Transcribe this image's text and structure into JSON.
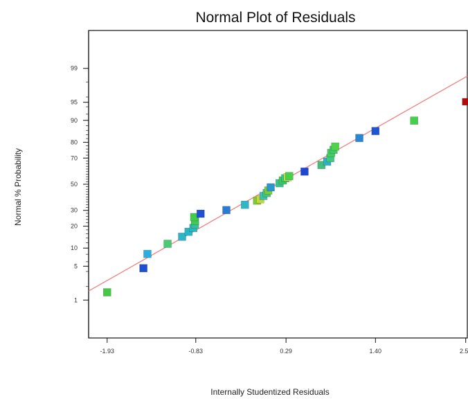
{
  "chart_data": {
    "type": "scatter",
    "title": "Normal Plot of Residuals",
    "xlabel": "Internally Studentized Residuals",
    "ylabel": "Normal % Probability",
    "xlim": [
      -2.16,
      2.54
    ],
    "ylim_percent": [
      0.1,
      99.9
    ],
    "y_scale": "normal-probability",
    "grid": false,
    "x_ticks": [
      {
        "value": -1.93,
        "label": "-1.93"
      },
      {
        "value": -0.83,
        "label": "-0.83"
      },
      {
        "value": 0.29,
        "label": "0.29"
      },
      {
        "value": 1.4,
        "label": "1.40"
      },
      {
        "value": 2.52,
        "label": "2.52"
      }
    ],
    "y_ticks": [
      {
        "value": 1,
        "label": "1"
      },
      {
        "value": 5,
        "label": "5"
      },
      {
        "value": 10,
        "label": "10"
      },
      {
        "value": 20,
        "label": "20"
      },
      {
        "value": 30,
        "label": "30"
      },
      {
        "value": 50,
        "label": "50"
      },
      {
        "value": 70,
        "label": "70"
      },
      {
        "value": 80,
        "label": "80"
      },
      {
        "value": 90,
        "label": "90"
      },
      {
        "value": 95,
        "label": "95"
      },
      {
        "value": 99,
        "label": "99"
      }
    ],
    "reference_line": {
      "color": "#f08080",
      "points": [
        {
          "x": -2.16,
          "y": 1.6
        },
        {
          "x": 2.54,
          "y": 98.5
        }
      ]
    },
    "series": [
      {
        "points": [
          {
            "x": -1.93,
            "y": 1.5,
            "color": "#45c945"
          },
          {
            "x": -1.48,
            "y": 4.6,
            "color": "#1f4fd1"
          },
          {
            "x": -1.43,
            "y": 8.1,
            "color": "#2aaee0"
          },
          {
            "x": -1.18,
            "y": 11.6,
            "color": "#4acb73"
          },
          {
            "x": -1.0,
            "y": 14.6,
            "color": "#2fb5c8"
          },
          {
            "x": -0.92,
            "y": 17.0,
            "color": "#2ab6c6"
          },
          {
            "x": -0.86,
            "y": 19.0,
            "color": "#2ab8c0"
          },
          {
            "x": -0.84,
            "y": 21.0,
            "color": "#35c0a0"
          },
          {
            "x": -0.84,
            "y": 23.0,
            "color": "#42c957"
          },
          {
            "x": -0.85,
            "y": 25.5,
            "color": "#41cc50"
          },
          {
            "x": -0.77,
            "y": 27.7,
            "color": "#2150d6"
          },
          {
            "x": -0.45,
            "y": 30.2,
            "color": "#2a7bd3"
          },
          {
            "x": -0.22,
            "y": 34.0,
            "color": "#30b7c7"
          },
          {
            "x": -0.07,
            "y": 37.1,
            "color": "#7fc934"
          },
          {
            "x": -0.03,
            "y": 38.1,
            "color": "#c4d83a"
          },
          {
            "x": 0.01,
            "y": 40.7,
            "color": "#3dc0b0"
          },
          {
            "x": 0.05,
            "y": 43.0,
            "color": "#46c47d"
          },
          {
            "x": 0.07,
            "y": 45.0,
            "color": "#79cd3c"
          },
          {
            "x": 0.1,
            "y": 47.5,
            "color": "#2c96d0"
          },
          {
            "x": 0.21,
            "y": 50.8,
            "color": "#39c28f"
          },
          {
            "x": 0.25,
            "y": 53.0,
            "color": "#3fca57"
          },
          {
            "x": 0.28,
            "y": 54.8,
            "color": "#3ac775"
          },
          {
            "x": 0.31,
            "y": 55.6,
            "color": "#c3e24a"
          },
          {
            "x": 0.33,
            "y": 56.5,
            "color": "#49cf4a"
          },
          {
            "x": 0.52,
            "y": 60.0,
            "color": "#2047d4"
          },
          {
            "x": 0.73,
            "y": 65.0,
            "color": "#42c07a"
          },
          {
            "x": 0.8,
            "y": 67.5,
            "color": "#30b1c3"
          },
          {
            "x": 0.84,
            "y": 70.0,
            "color": "#3eca80"
          },
          {
            "x": 0.85,
            "y": 73.5,
            "color": "#45cd63"
          },
          {
            "x": 0.88,
            "y": 75.5,
            "color": "#43ca68"
          },
          {
            "x": 0.9,
            "y": 77.5,
            "color": "#4ed34a"
          },
          {
            "x": 1.2,
            "y": 82.3,
            "color": "#2a88d0"
          },
          {
            "x": 1.4,
            "y": 85.7,
            "color": "#1d55d3"
          },
          {
            "x": 1.88,
            "y": 89.9,
            "color": "#45cf4a"
          },
          {
            "x": 2.52,
            "y": 95.1,
            "color": "#b10d0d"
          }
        ]
      }
    ]
  }
}
